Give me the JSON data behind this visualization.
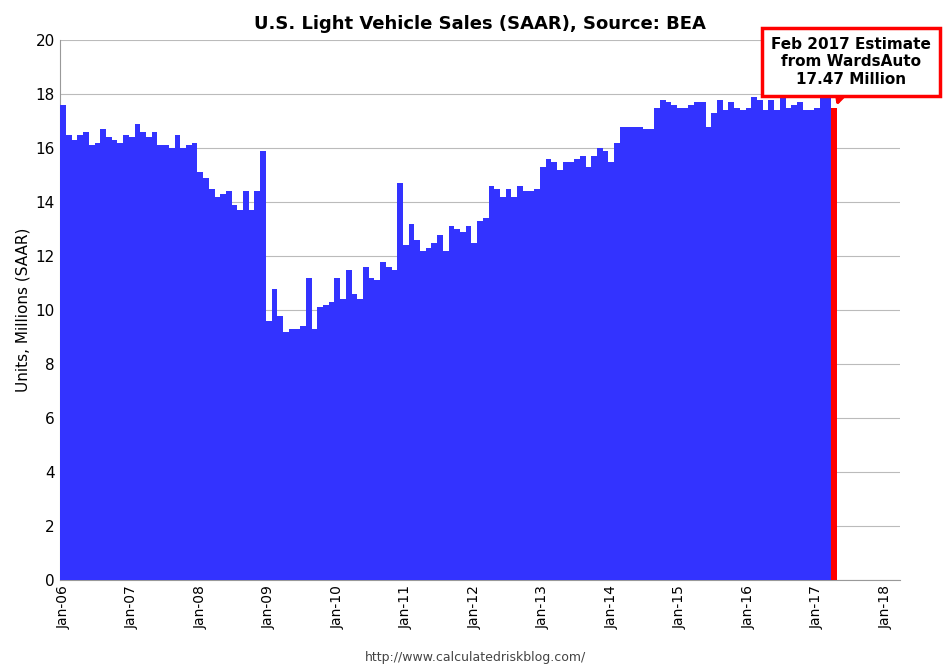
{
  "title": "U.S. Light Vehicle Sales (SAAR), Source: BEA",
  "ylabel": "Units, Millions (SAAR)",
  "footer": "http://www.calculatedriskblog.com/",
  "ylim": [
    0,
    20
  ],
  "yticks": [
    0,
    2,
    4,
    6,
    8,
    10,
    12,
    14,
    16,
    18,
    20
  ],
  "bar_color": "#3333FF",
  "estimate_color": "#FF0000",
  "annotation_text": "Feb 2017 Estimate\nfrom WardsAuto\n17.47 Million",
  "background_color": "#FFFFFF",
  "grid_color": "#BBBBBB",
  "values": [
    17.6,
    16.5,
    16.3,
    16.5,
    16.6,
    16.1,
    16.2,
    16.7,
    16.4,
    16.3,
    16.2,
    16.5,
    16.4,
    16.9,
    16.6,
    16.4,
    16.6,
    16.1,
    16.1,
    16.0,
    16.5,
    16.0,
    16.1,
    16.2,
    15.1,
    14.9,
    14.5,
    14.2,
    14.3,
    14.4,
    13.9,
    13.7,
    14.4,
    13.7,
    14.4,
    15.9,
    9.6,
    10.8,
    9.8,
    9.2,
    9.3,
    9.3,
    9.4,
    11.2,
    9.3,
    10.1,
    10.2,
    10.3,
    11.2,
    10.4,
    11.5,
    10.6,
    10.4,
    11.6,
    11.2,
    11.1,
    11.8,
    11.6,
    11.5,
    14.7,
    12.4,
    13.2,
    12.6,
    12.2,
    12.3,
    12.5,
    12.8,
    12.2,
    13.1,
    13.0,
    12.9,
    13.1,
    12.5,
    13.3,
    13.4,
    14.6,
    14.5,
    14.2,
    14.5,
    14.2,
    14.6,
    14.4,
    14.4,
    14.5,
    15.3,
    15.6,
    15.5,
    15.2,
    15.5,
    15.5,
    15.6,
    15.7,
    15.3,
    15.7,
    16.0,
    15.9,
    15.5,
    16.2,
    16.8,
    16.8,
    16.8,
    16.8,
    16.7,
    16.7,
    17.5,
    17.8,
    17.7,
    17.6,
    17.5,
    17.5,
    17.6,
    17.7,
    17.7,
    16.8,
    17.3,
    17.8,
    17.4,
    17.7,
    17.5,
    17.4,
    17.5,
    17.9,
    17.8,
    17.4,
    17.8,
    17.4,
    17.9,
    17.5,
    17.6,
    17.7,
    17.4,
    17.4,
    17.5,
    18.1,
    17.9
  ],
  "estimate_value": 17.47,
  "x_tick_labels": [
    "Jan-06",
    "Jan-07",
    "Jan-08",
    "Jan-09",
    "Jan-10",
    "Jan-11",
    "Jan-12",
    "Jan-13",
    "Jan-14",
    "Jan-15",
    "Jan-16",
    "Jan-17",
    "Jan-18"
  ],
  "x_tick_positions": [
    0,
    12,
    24,
    36,
    48,
    60,
    72,
    84,
    96,
    108,
    120,
    132,
    144
  ]
}
